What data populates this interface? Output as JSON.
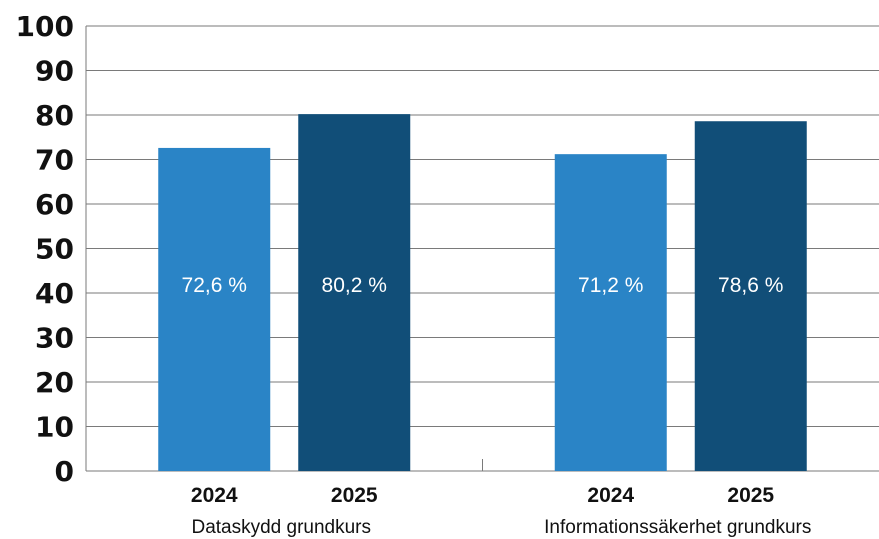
{
  "chart_data": {
    "type": "bar",
    "groups": [
      "Dataskydd grundkurs",
      "Informationssäkerhet grundkurs"
    ],
    "categories": [
      "2024",
      "2025"
    ],
    "series": [
      {
        "values": [
          72.6,
          71.2
        ],
        "labels": [
          "72,6 %",
          "71,2 %"
        ],
        "color": "#2A84C6"
      },
      {
        "values": [
          80.2,
          78.6
        ],
        "labels": [
          "80,2 %",
          "78,6 %"
        ],
        "color": "#114E78"
      }
    ],
    "yticks": [
      "0",
      "10",
      "20",
      "30",
      "40",
      "50",
      "60",
      "70",
      "80",
      "90",
      "100"
    ],
    "ylim": [
      0,
      100
    ],
    "grid": true,
    "title": "",
    "xlabel": "",
    "ylabel": ""
  }
}
